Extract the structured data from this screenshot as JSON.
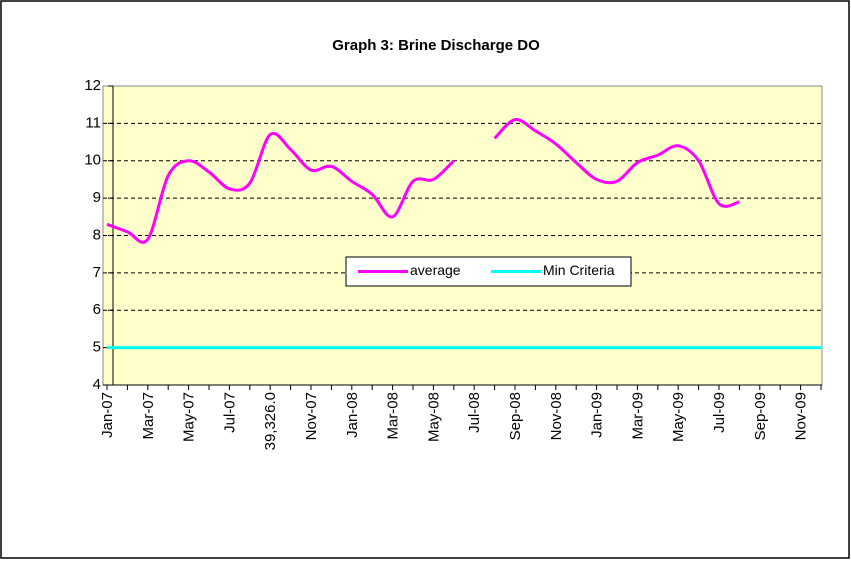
{
  "chart_data": {
    "type": "line",
    "title": "Graph 3: Brine Discharge DO",
    "categories": [
      "Jan-07",
      null,
      "Mar-07",
      null,
      "May-07",
      null,
      "Jul-07",
      null,
      "39,326.0",
      null,
      "Nov-07",
      null,
      "Jan-08",
      null,
      "Mar-08",
      null,
      "May-08",
      null,
      "Jul-08",
      null,
      "Sep-08",
      null,
      "Nov-08",
      null,
      "Jan-09",
      null,
      "Mar-09",
      null,
      "May-09",
      null,
      "Jul-09",
      null,
      "Sep-09",
      null,
      "Nov-09",
      null
    ],
    "series": [
      {
        "name": "average",
        "color": "#ff00ff",
        "values": [
          8.3,
          8.1,
          7.9,
          9.6,
          10.0,
          9.7,
          9.25,
          9.4,
          10.7,
          10.3,
          9.75,
          9.85,
          9.45,
          9.1,
          8.5,
          9.45,
          9.5,
          10.0,
          null,
          10.6,
          11.1,
          10.8,
          10.45,
          9.95,
          9.5,
          9.45,
          9.95,
          10.15,
          10.4,
          10.0,
          8.85,
          8.9,
          null,
          null,
          null,
          null
        ]
      },
      {
        "name": "Min Criteria",
        "color": "#00ffff",
        "values": [
          5,
          5,
          5,
          5,
          5,
          5,
          5,
          5,
          5,
          5,
          5,
          5,
          5,
          5,
          5,
          5,
          5,
          5,
          5,
          5,
          5,
          5,
          5,
          5,
          5,
          5,
          5,
          5,
          5,
          5,
          5,
          5,
          5,
          5,
          5,
          5
        ]
      }
    ],
    "ylim": [
      4,
      12
    ],
    "yticks": [
      4,
      5,
      6,
      7,
      8,
      9,
      10,
      11,
      12
    ],
    "grid": true,
    "legend": "center",
    "plot_background": "#ffffcc"
  }
}
